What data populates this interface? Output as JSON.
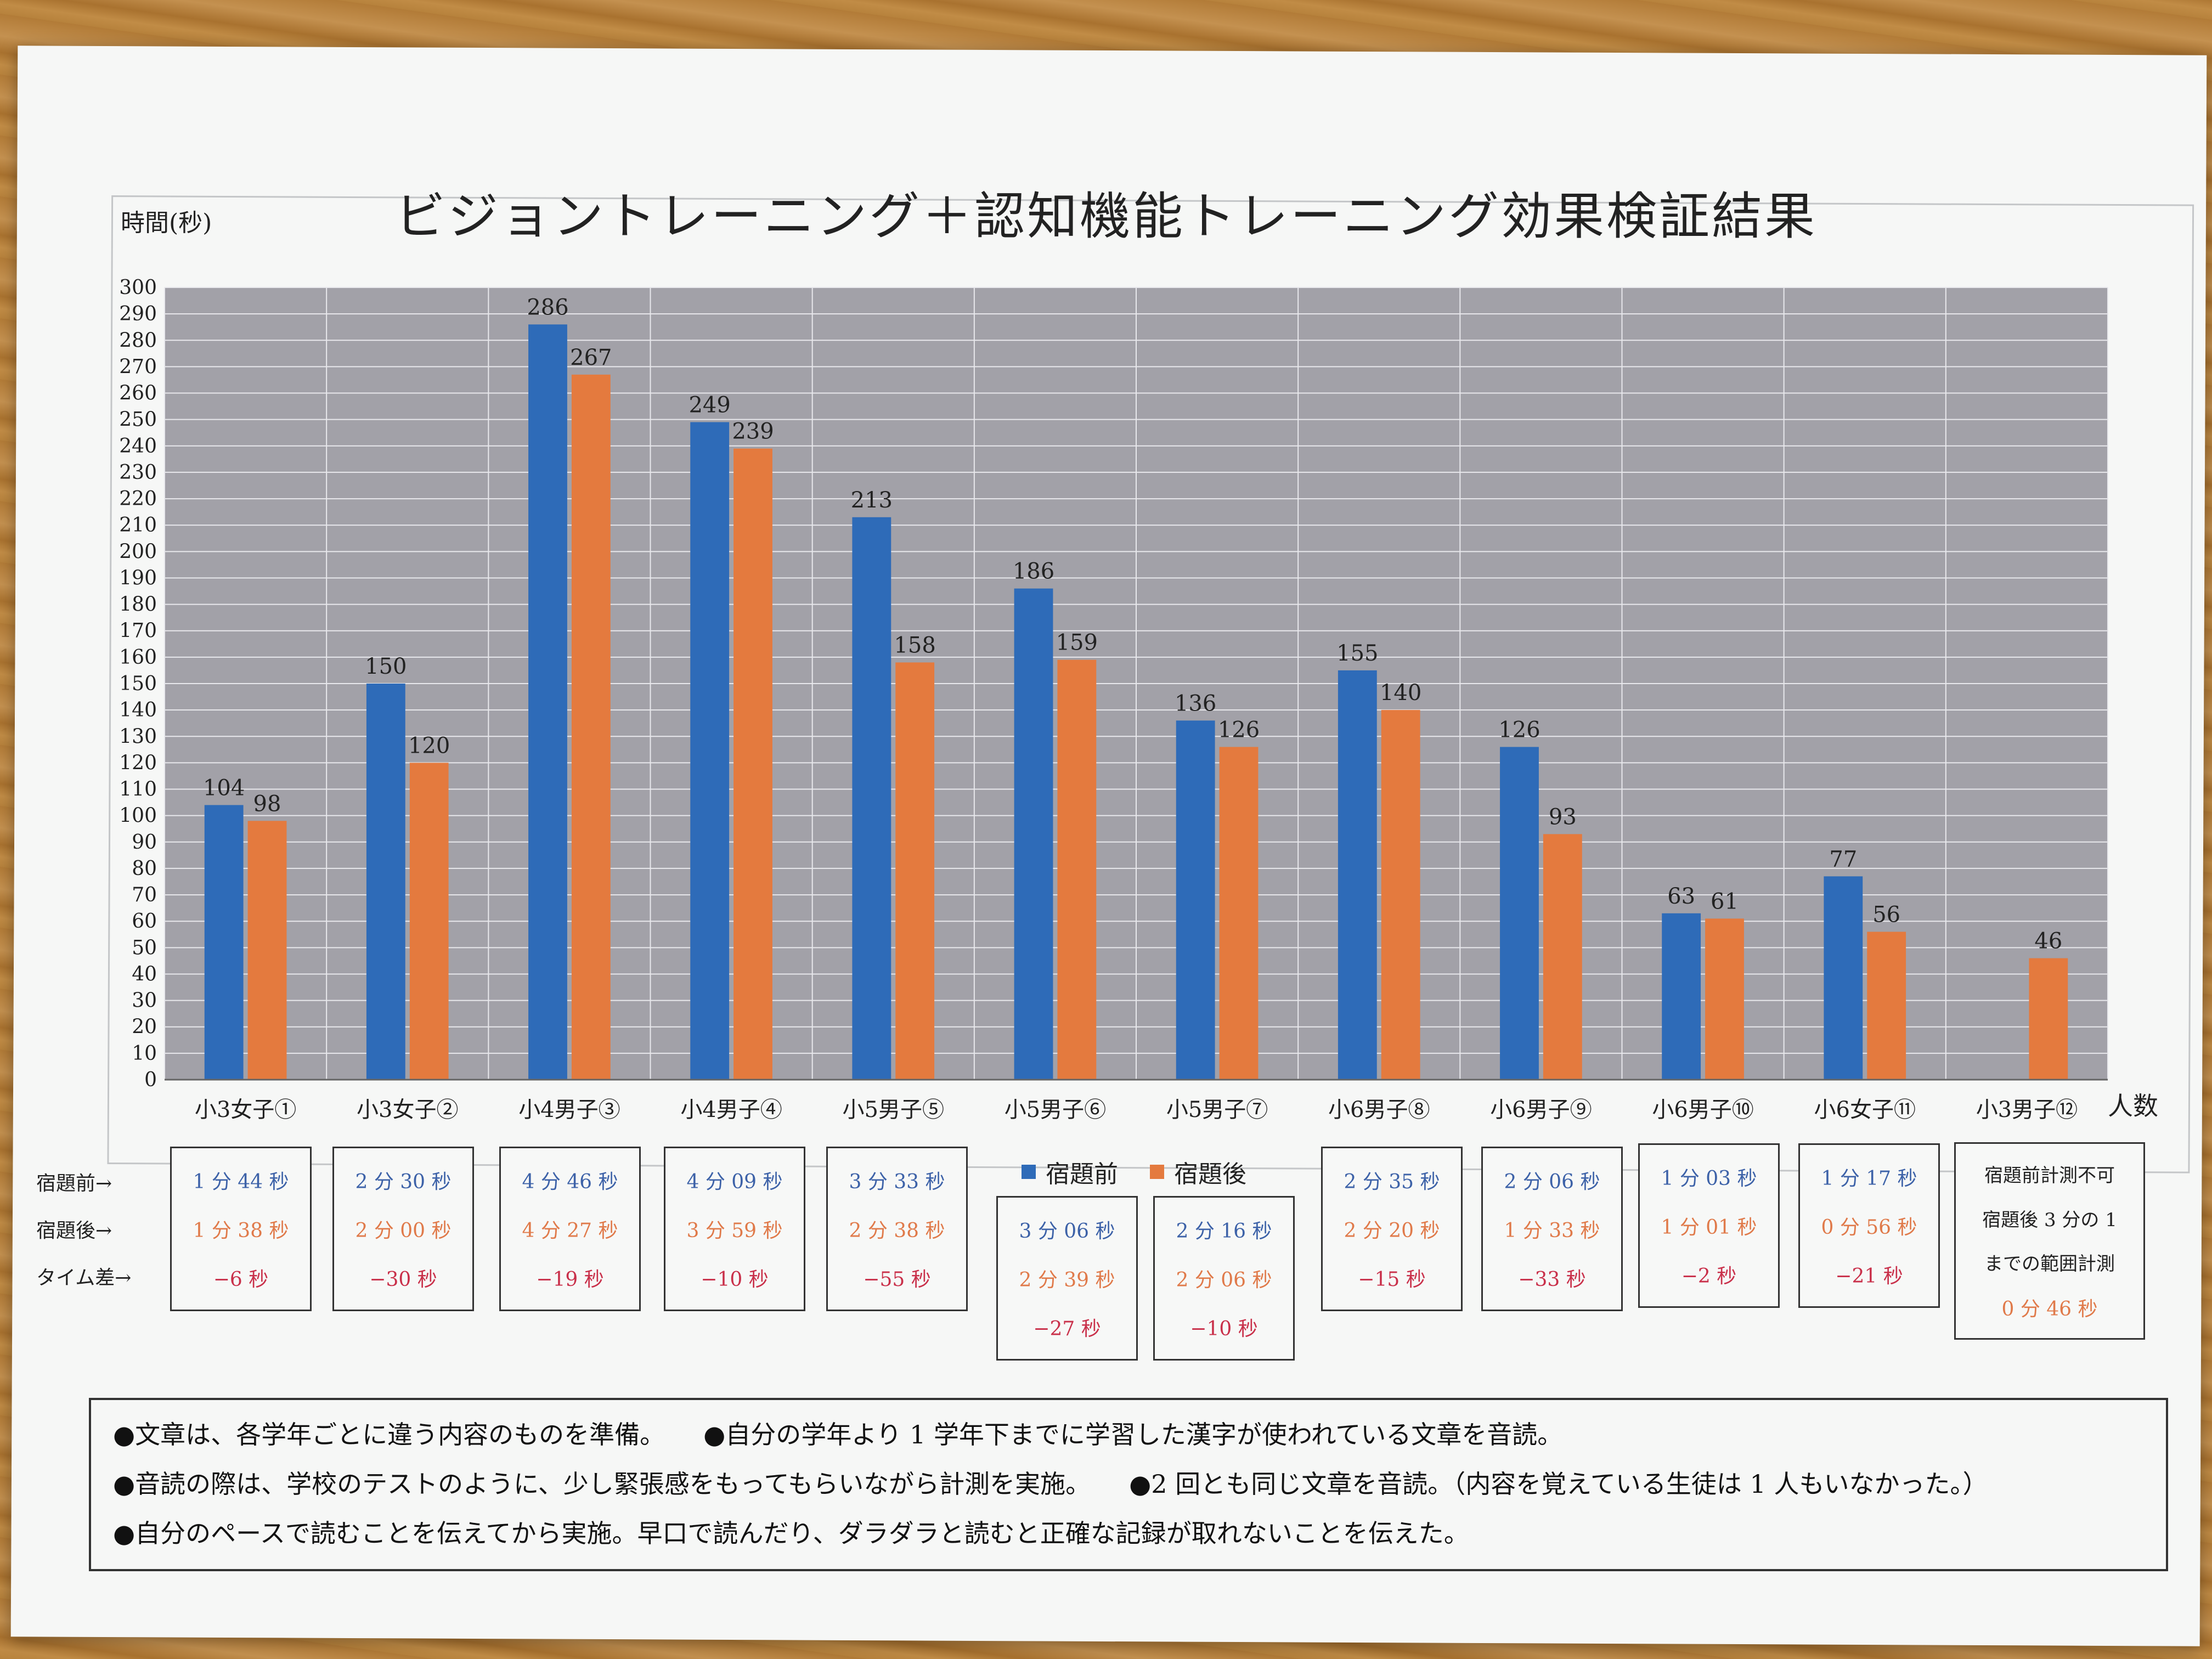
{
  "title": "ビジョントレーニング＋認知機能トレーニング効果検証結果",
  "y_unit": "時間(秒)",
  "x_unit": "人数",
  "row_labels": {
    "before": "宿題前→",
    "after": "宿題後→",
    "diff": "タイム差→"
  },
  "legend": {
    "before": "宿題前",
    "after": "宿題後"
  },
  "colors": {
    "before": "#2e6bb8",
    "after": "#e47a3e",
    "plot_bg": "#a2a1a8",
    "diff_text": "#c9304a"
  },
  "chart_data": {
    "type": "bar",
    "title": "ビジョントレーニング＋認知機能トレーニング効果検証結果",
    "ylabel": "時間(秒)",
    "xlabel": "人数",
    "ylim": [
      0,
      300
    ],
    "ytick_step": 10,
    "grid": true,
    "categories": [
      "小3女子①",
      "小3女子②",
      "小4男子③",
      "小4男子④",
      "小5男子⑤",
      "小5男子⑥",
      "小5男子⑦",
      "小6男子⑧",
      "小6男子⑨",
      "小6男子⑩",
      "小6女子⑪",
      "小3男子⑫"
    ],
    "series": [
      {
        "name": "宿題前",
        "values": [
          104,
          150,
          286,
          249,
          213,
          186,
          136,
          155,
          126,
          63,
          77,
          null
        ]
      },
      {
        "name": "宿題後",
        "values": [
          98,
          120,
          267,
          239,
          158,
          159,
          126,
          140,
          93,
          61,
          56,
          46
        ]
      }
    ]
  },
  "time_boxes": [
    {
      "before": "1 分 44 秒",
      "after": "1 分 38 秒",
      "diff": "−6 秒"
    },
    {
      "before": "2 分 30 秒",
      "after": "2 分 00 秒",
      "diff": "−30 秒"
    },
    {
      "before": "4 分 46 秒",
      "after": "4 分 27 秒",
      "diff": "−19 秒"
    },
    {
      "before": "4 分 09 秒",
      "after": "3 分 59 秒",
      "diff": "−10 秒"
    },
    {
      "before": "3 分 33 秒",
      "after": "2 分 38 秒",
      "diff": "−55 秒"
    },
    {
      "before": "3 分 06 秒",
      "after": "2 分 39 秒",
      "diff": "−27 秒"
    },
    {
      "before": "2 分 16 秒",
      "after": "2 分 06 秒",
      "diff": "−10 秒"
    },
    {
      "before": "2 分 35 秒",
      "after": "2 分 20 秒",
      "diff": "−15 秒"
    },
    {
      "before": "2 分 06 秒",
      "after": "1 分 33 秒",
      "diff": "−33 秒"
    },
    {
      "before": "1 分 03 秒",
      "after": "1 分 01 秒",
      "diff": "−2 秒"
    },
    {
      "before": "1 分 17 秒",
      "after": "0 分 56 秒",
      "diff": "−21 秒"
    }
  ],
  "special_box": {
    "line1": "宿題前計測不可",
    "line2": "宿題後 3 分の 1",
    "line3": "までの範囲計測",
    "line4": "0 分 46 秒"
  },
  "notes": {
    "n1": "●文章は、各学年ごとに違う内容のものを準備。",
    "n2": "●自分の学年より 1 学年下までに学習した漢字が使われている文章を音読。",
    "n3": "●音読の際は、学校のテストのように、少し緊張感をもってもらいながら計測を実施。",
    "n4": "●2 回とも同じ文章を音読。（内容を覚えている生徒は 1 人もいなかった。）",
    "n5": "●自分のペースで読むことを伝えてから実施。早口で読んだり、ダラダラと読むと正確な記録が取れないことを伝えた。"
  }
}
